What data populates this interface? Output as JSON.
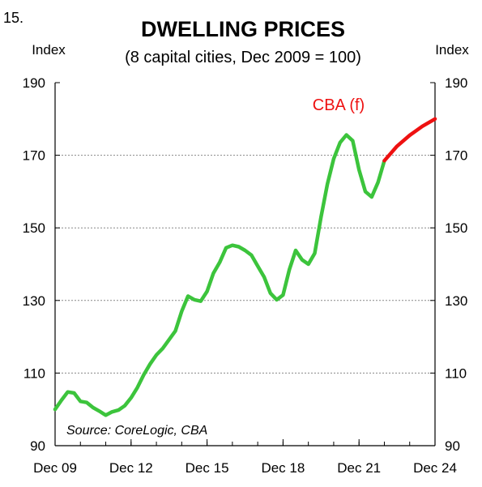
{
  "figure_number": "15.",
  "chart_data": {
    "type": "line",
    "title": "DWELLING PRICES",
    "subtitle": "(8 capital cities, Dec 2009 = 100)",
    "ylabel_left": "Index",
    "ylabel_right": "Index",
    "ylim": [
      90,
      190
    ],
    "xlim": [
      2009.92,
      2024.92
    ],
    "yticks": [
      90,
      110,
      130,
      150,
      170,
      190
    ],
    "xticks": [
      {
        "label": "Dec 09",
        "x": 2009.92
      },
      {
        "label": "Dec 12",
        "x": 2012.92
      },
      {
        "label": "Dec 15",
        "x": 2015.92
      },
      {
        "label": "Dec 18",
        "x": 2018.92
      },
      {
        "label": "Dec 21",
        "x": 2021.92
      },
      {
        "label": "Dec 24",
        "x": 2024.92
      }
    ],
    "grid": "horizontal dotted",
    "source": "Source: CoreLogic, CBA",
    "colors": {
      "actual": "#3cc43c",
      "forecast": "#ee1111",
      "grid": "#888888"
    },
    "series": [
      {
        "name": "",
        "color": "#3cc43c",
        "points": [
          [
            2009.92,
            100.0
          ],
          [
            2010.17,
            102.5
          ],
          [
            2010.42,
            104.8
          ],
          [
            2010.67,
            104.5
          ],
          [
            2010.92,
            102.2
          ],
          [
            2011.17,
            101.9
          ],
          [
            2011.42,
            100.5
          ],
          [
            2011.67,
            99.5
          ],
          [
            2011.92,
            98.4
          ],
          [
            2012.17,
            99.3
          ],
          [
            2012.42,
            99.8
          ],
          [
            2012.67,
            101.0
          ],
          [
            2012.92,
            103.2
          ],
          [
            2013.17,
            106.0
          ],
          [
            2013.42,
            109.5
          ],
          [
            2013.67,
            112.5
          ],
          [
            2013.92,
            115.0
          ],
          [
            2014.17,
            116.8
          ],
          [
            2014.42,
            119.2
          ],
          [
            2014.67,
            121.6
          ],
          [
            2014.92,
            127.0
          ],
          [
            2015.17,
            131.2
          ],
          [
            2015.42,
            130.2
          ],
          [
            2015.67,
            129.8
          ],
          [
            2015.92,
            132.5
          ],
          [
            2016.17,
            137.5
          ],
          [
            2016.42,
            140.5
          ],
          [
            2016.67,
            144.5
          ],
          [
            2016.92,
            145.2
          ],
          [
            2017.17,
            144.8
          ],
          [
            2017.42,
            143.8
          ],
          [
            2017.67,
            142.5
          ],
          [
            2017.92,
            139.5
          ],
          [
            2018.17,
            136.5
          ],
          [
            2018.42,
            132.0
          ],
          [
            2018.67,
            130.2
          ],
          [
            2018.92,
            131.5
          ],
          [
            2019.17,
            138.5
          ],
          [
            2019.42,
            143.8
          ],
          [
            2019.67,
            141.2
          ],
          [
            2019.92,
            140.0
          ],
          [
            2020.17,
            143.0
          ],
          [
            2020.42,
            153.0
          ],
          [
            2020.67,
            162.0
          ],
          [
            2020.92,
            169.0
          ],
          [
            2021.17,
            173.5
          ],
          [
            2021.42,
            175.6
          ],
          [
            2021.67,
            174.0
          ],
          [
            2021.92,
            166.0
          ],
          [
            2022.17,
            160.0
          ],
          [
            2022.42,
            158.5
          ],
          [
            2022.67,
            162.5
          ],
          [
            2022.92,
            168.5
          ]
        ]
      },
      {
        "name": "CBA (f)",
        "color": "#ee1111",
        "points": [
          [
            2022.92,
            168.5
          ],
          [
            2023.42,
            172.5
          ],
          [
            2023.92,
            175.5
          ],
          [
            2024.42,
            178.0
          ],
          [
            2024.92,
            180.0
          ]
        ]
      }
    ]
  }
}
